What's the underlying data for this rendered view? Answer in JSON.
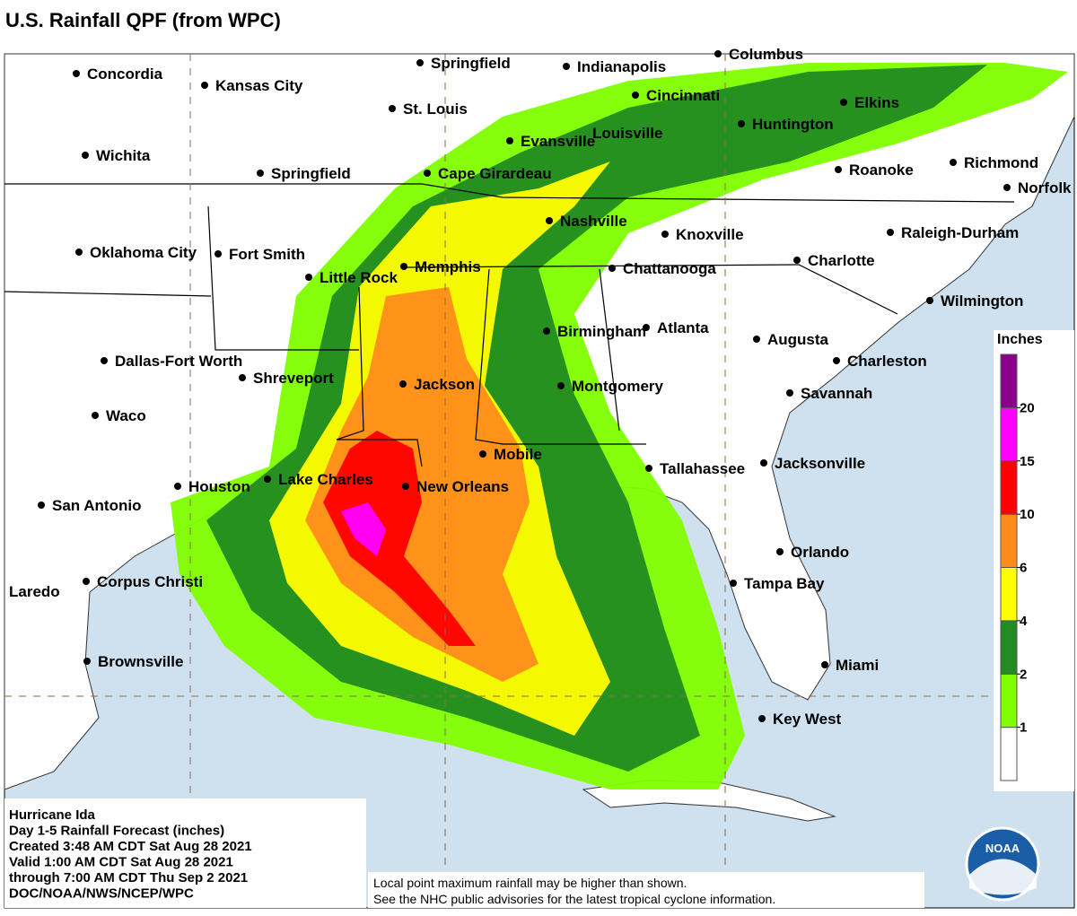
{
  "header": {
    "title": "U.S. Rainfall QPF (from WPC)"
  },
  "map": {
    "cities": [
      "Concordia",
      "Kansas City",
      "Springfield",
      "Indianapolis",
      "Columbus",
      "St. Louis",
      "Cincinnati",
      "Elkins",
      "Wichita",
      "Evansville",
      "Louisville",
      "Huntington",
      "Richmond",
      "Springfield",
      "Cape Girardeau",
      "Roanoke",
      "Norfolk",
      "Nashville",
      "Knoxville",
      "Raleigh-Durham",
      "Oklahoma City",
      "Fort Smith",
      "Little Rock",
      "Memphis",
      "Chattanooga",
      "Charlotte",
      "Wilmington",
      "Birmingham",
      "Atlanta",
      "Augusta",
      "Dallas-Fort Worth",
      "Shreveport",
      "Charleston",
      "Jackson",
      "Montgomery",
      "Savannah",
      "Waco",
      "Mobile",
      "Tallahassee",
      "Jacksonville",
      "Houston",
      "Lake Charles",
      "New Orleans",
      "San Antonio",
      "Orlando",
      "Tampa Bay",
      "Corpus Christi",
      "Laredo",
      "Miami",
      "Brownsville",
      "Key West"
    ],
    "legend": {
      "title": "Inches",
      "breaks": [
        1,
        2,
        4,
        6,
        10,
        15,
        20
      ],
      "colors": [
        "#ffffff",
        "#7fff00",
        "#228b22",
        "#ffff00",
        "#ff8c1a",
        "#ff0000",
        "#ff00ff",
        "#8b008b"
      ]
    },
    "info": {
      "lines": [
        "Hurricane Ida",
        "Day 1-5 Rainfall Forecast (inches)",
        "Created 3:48 AM CDT Sat Aug 28 2021",
        "Valid 1:00 AM CDT Sat Aug 28 2021",
        "through 7:00 AM CDT Thu Sep 2 2021",
        "DOC/NOAA/NWS/NCEP/WPC"
      ]
    },
    "disclaimer": {
      "lines": [
        "Local point maximum rainfall may be higher than shown.",
        "See the NHC public advisories for the latest tropical cyclone information."
      ]
    },
    "logo": "NOAA"
  }
}
